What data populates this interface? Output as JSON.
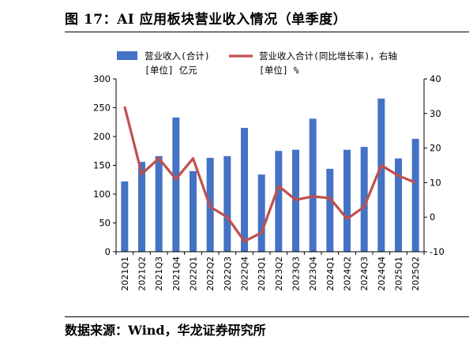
{
  "title": "图 17：AI 应用板块营业收入情况（单季度）",
  "source": "数据来源：Wind，华龙证券研究所",
  "chart_data": {
    "type": "bar",
    "categories": [
      "2021Q1",
      "2021Q2",
      "2021Q3",
      "2021Q4",
      "2022Q1",
      "2022Q2",
      "2022Q3",
      "2022Q4",
      "2023Q1",
      "2023Q2",
      "2023Q3",
      "2023Q4",
      "2024Q1",
      "2024Q2",
      "2024Q3",
      "2024Q4",
      "2025Q1",
      "2025Q2"
    ],
    "series": [
      {
        "name": "营业收入(合计)",
        "unit_label": "[单位] 亿元",
        "type": "bar",
        "axis": "left",
        "color": "#4472C4",
        "values": [
          122,
          156,
          166,
          233,
          140,
          163,
          166,
          215,
          134,
          175,
          177,
          231,
          144,
          177,
          182,
          266,
          162,
          196
        ]
      },
      {
        "name": "营业收入合计(同比增长率)，右轴",
        "unit_label": "[单位] %",
        "type": "line",
        "axis": "right",
        "color": "#C0504D",
        "values": [
          32,
          12.5,
          17,
          11,
          17,
          3,
          0,
          -7,
          -4.5,
          9,
          5,
          6,
          5.5,
          -0.5,
          3,
          15,
          12,
          10
        ]
      }
    ],
    "y_left": {
      "min": 0,
      "max": 300,
      "ticks": [
        0,
        50,
        100,
        150,
        200,
        250,
        300
      ]
    },
    "y_right": {
      "min": -10,
      "max": 40,
      "ticks": [
        -10,
        0,
        10,
        20,
        30,
        40
      ]
    },
    "legend_position": "top",
    "grid": false
  }
}
